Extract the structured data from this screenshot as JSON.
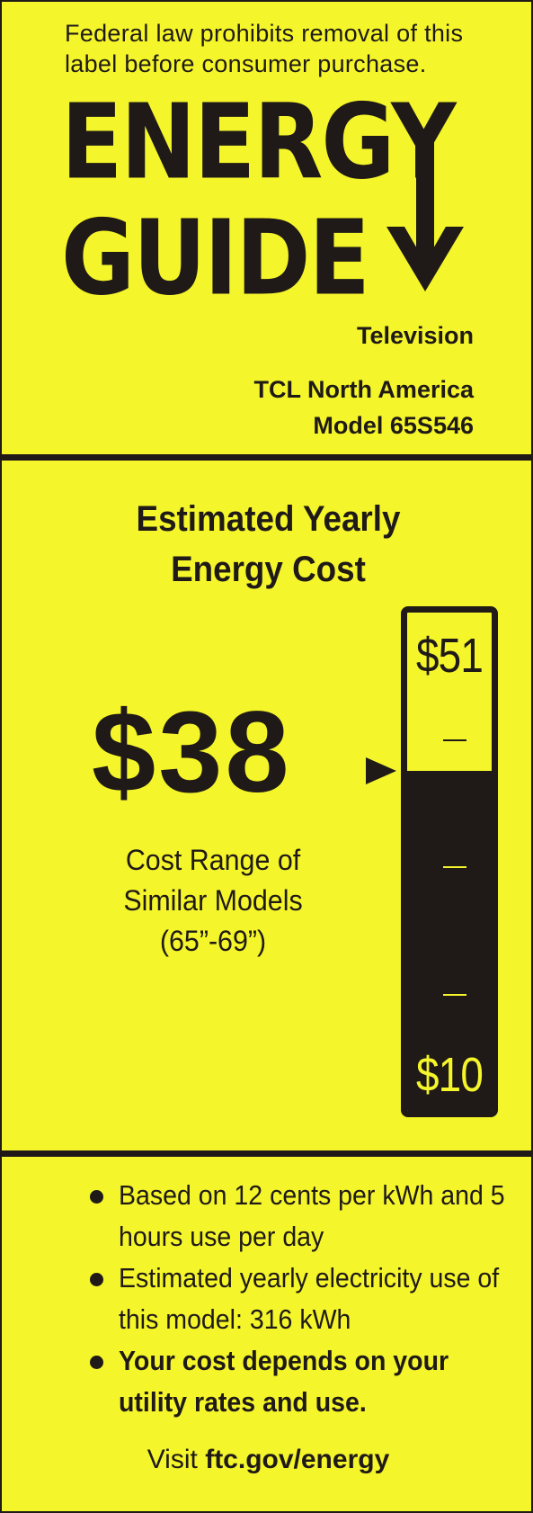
{
  "header": {
    "federal_notice": "Federal law prohibits removal of this label before consumer purchase.",
    "logo_line1": "ENERGY",
    "logo_line2": "GUIDE",
    "category": "Television",
    "manufacturer": "TCL North America",
    "model": "Model 65S546"
  },
  "cost_section": {
    "title_line1": "Estimated Yearly",
    "title_line2": "Energy Cost",
    "estimated_cost": "$38",
    "range_line1": "Cost Range of",
    "range_line2": "Similar Models",
    "range_line3": "(65”-69”)",
    "scale_max_label": "$51",
    "scale_min_label": "$10",
    "scale_min": 10,
    "scale_max": 51,
    "value": 38
  },
  "notes": {
    "items": [
      "Based on 12 cents per kWh and 5 hours use per day",
      "Estimated yearly electricity use of this model: 316 kWh",
      "Your cost depends on your utility rates and use."
    ]
  },
  "footer": {
    "visit_prefix": "Visit",
    "url": "ftc.gov/energy"
  },
  "colors": {
    "background": "#f5f52b",
    "ink": "#1f1a17"
  }
}
